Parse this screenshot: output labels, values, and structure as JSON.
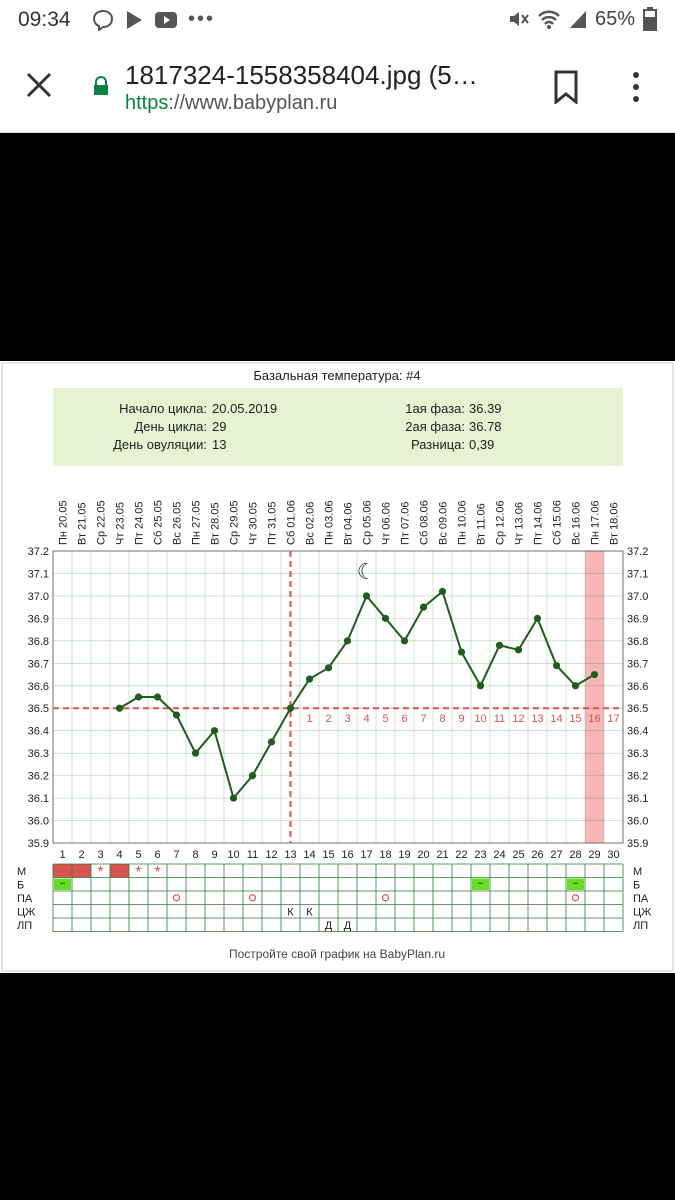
{
  "status_bar": {
    "time": "09:34",
    "battery": "65%",
    "icons_left": [
      "viber-icon",
      "play-store-icon",
      "youtube-icon",
      "more-dots-icon"
    ],
    "icons_right": [
      "mute-icon",
      "wifi-icon",
      "signal-icon",
      "battery-icon"
    ]
  },
  "browser": {
    "title": "1817324-1558358404.jpg (5…",
    "url_scheme": "https",
    "url_rest": "://www.babyplan.ru",
    "colors": {
      "lock": "#0b8043",
      "scheme": "#0b8043"
    }
  },
  "chart": {
    "title": "Базальная температура: #4",
    "info": {
      "cycle_start_label": "Начало цикла:",
      "cycle_start_value": "20.05.2019",
      "cycle_day_label": "День цикла:",
      "cycle_day_value": "29",
      "ovulation_day_label": "День овуляции:",
      "ovulation_day_value": "13",
      "phase1_label": "1ая фаза:",
      "phase1_value": "36.39",
      "phase2_label": "2ая фаза:",
      "phase2_value": "36.78",
      "diff_label": "Разница:",
      "diff_value": "0,39"
    },
    "footer": "Постройте свой график на BabyPlan.ru",
    "moon_symbol": "☾",
    "colors": {
      "line": "#1d5e1a",
      "cover": "#d9534f",
      "grid": "#2e7d32",
      "info_bg": "#e6f2d2",
      "highlight": "#f7b6b6",
      "green_mark": "#66dd22"
    }
  },
  "chart_data": {
    "type": "line",
    "title": "Базальная температура: #4",
    "dates": [
      "Пн 20.05",
      "Вт 21.05",
      "Ср 22.05",
      "Чт 23.05",
      "Пт 24.05",
      "Сб 25.05",
      "Вс 26.05",
      "Пн 27.05",
      "Вт 28.05",
      "Ср 29.05",
      "Чт 30.05",
      "Пт 31.05",
      "Сб 01.06",
      "Вс 02.06",
      "Пн 03.06",
      "Вт 04.06",
      "Ср 05.06",
      "Чт 06.06",
      "Пт 07.06",
      "Сб 08.06",
      "Вс 09.06",
      "Пн 10.06",
      "Вт 11.06",
      "Ср 12.06",
      "Чт 13.06",
      "Пт 14.06",
      "Сб 15.06",
      "Вс 16.06",
      "Пн 17.06",
      "Вт 18.06"
    ],
    "days": [
      "1",
      "2",
      "3",
      "4",
      "5",
      "6",
      "7",
      "8",
      "9",
      "10",
      "11",
      "12",
      "13",
      "14",
      "15",
      "16",
      "17",
      "18",
      "19",
      "20",
      "21",
      "22",
      "23",
      "24",
      "25",
      "26",
      "27",
      "28",
      "29",
      "30"
    ],
    "yticks": [
      "37.2",
      "37.1",
      "37.0",
      "36.9",
      "36.8",
      "36.7",
      "36.6",
      "36.5",
      "36.4",
      "36.3",
      "36.2",
      "36.1",
      "36.0",
      "35.9"
    ],
    "ylim": [
      35.9,
      37.2
    ],
    "values": [
      null,
      null,
      null,
      36.5,
      36.55,
      36.55,
      36.47,
      36.3,
      36.4,
      36.1,
      36.2,
      36.35,
      36.5,
      36.63,
      36.68,
      36.8,
      37.0,
      36.9,
      36.8,
      36.95,
      37.02,
      36.75,
      36.6,
      36.78,
      36.76,
      36.9,
      36.69,
      36.6,
      36.65,
      null
    ],
    "coverline": 36.5,
    "ovulation_day": 13,
    "post_ovulation_numbers": [
      "1",
      "2",
      "3",
      "4",
      "5",
      "6",
      "7",
      "8",
      "9",
      "10",
      "11",
      "12",
      "13",
      "14",
      "15",
      "16",
      "17"
    ],
    "highlighted_day": 29,
    "row_labels": [
      "М",
      "Б",
      "ПА",
      "ЦЖ",
      "ЛП"
    ],
    "marks": [
      {
        "row": 0,
        "day": 1,
        "kind": "fill"
      },
      {
        "row": 0,
        "day": 2,
        "kind": "fill"
      },
      {
        "row": 0,
        "day": 3,
        "kind": "star"
      },
      {
        "row": 0,
        "day": 4,
        "kind": "fill"
      },
      {
        "row": 0,
        "day": 5,
        "kind": "star"
      },
      {
        "row": 0,
        "day": 6,
        "kind": "star"
      },
      {
        "row": 1,
        "day": 1,
        "kind": "green"
      },
      {
        "row": 1,
        "day": 23,
        "kind": "green"
      },
      {
        "row": 1,
        "day": 28,
        "kind": "green"
      },
      {
        "row": 2,
        "day": 7,
        "kind": "circle"
      },
      {
        "row": 2,
        "day": 11,
        "kind": "circle"
      },
      {
        "row": 2,
        "day": 18,
        "kind": "circle"
      },
      {
        "row": 2,
        "day": 28,
        "kind": "circle"
      },
      {
        "row": 3,
        "day": 13,
        "kind": "text",
        "text": "К"
      },
      {
        "row": 3,
        "day": 14,
        "kind": "text",
        "text": "К"
      },
      {
        "row": 4,
        "day": 15,
        "kind": "text",
        "text": "Д"
      },
      {
        "row": 4,
        "day": 16,
        "kind": "text",
        "text": "Д"
      }
    ]
  }
}
